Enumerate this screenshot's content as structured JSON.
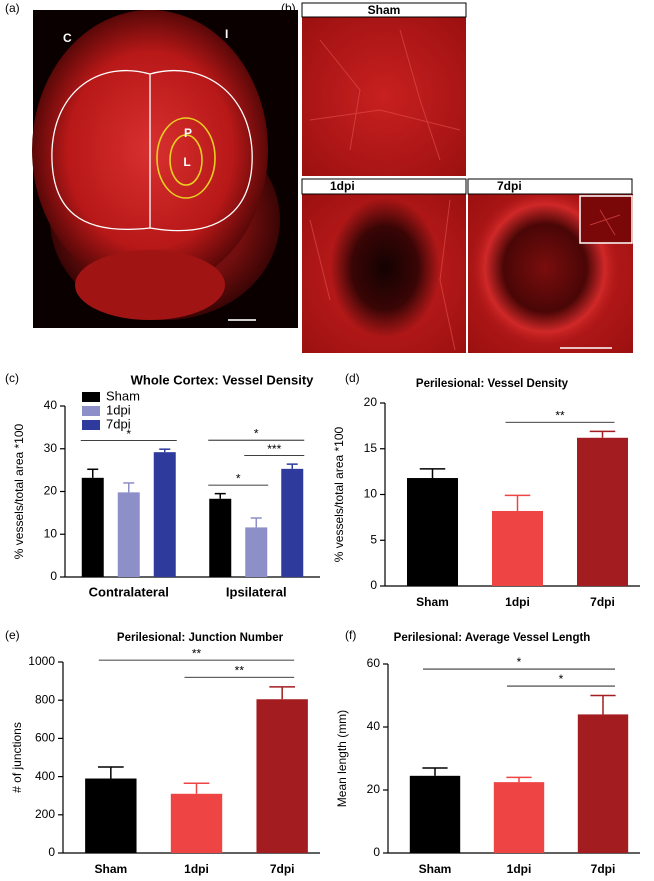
{
  "panel_labels": [
    "(a)",
    "(b)",
    "(c)",
    "(d)",
    "(e)",
    "(f)"
  ],
  "brain_image": {
    "labels": [
      "C",
      "I",
      "P",
      "L"
    ]
  },
  "vessel_images": [
    "Sham",
    "1dpi",
    "7dpi"
  ],
  "chart_data": [
    {
      "type": "grouped_bar",
      "title": "Whole Cortex:  Vessel Density",
      "ylabel": "% vessels/total area *100",
      "categories": [
        "Contralateral",
        "Ipsilateral"
      ],
      "series": [
        {
          "name": "Sham",
          "color": "#000000",
          "values": [
            23.2,
            18.3
          ],
          "errors": [
            2.0,
            1.2
          ]
        },
        {
          "name": "1dpi",
          "color": "#8c8fc8",
          "values": [
            19.8,
            11.6
          ],
          "errors": [
            2.2,
            2.2
          ]
        },
        {
          "name": "7dpi",
          "color": "#2e3a9c",
          "values": [
            29.2,
            25.3
          ],
          "errors": [
            0.7,
            1.1
          ]
        }
      ],
      "ylim": [
        0,
        40
      ],
      "yticks": [
        0,
        10,
        20,
        30,
        40
      ],
      "significance": [
        {
          "category": "Contralateral",
          "between": [
            "Sham",
            "7dpi"
          ],
          "label": "*"
        },
        {
          "category": "Ipsilateral",
          "between": [
            "Sham",
            "1dpi"
          ],
          "label": "*"
        },
        {
          "category": "Ipsilateral",
          "between": [
            "1dpi",
            "7dpi"
          ],
          "label": "***"
        },
        {
          "category": "Ipsilateral",
          "between": [
            "Sham",
            "7dpi"
          ],
          "label": "*"
        }
      ]
    },
    {
      "type": "bar",
      "title": "Perilesional: Vessel Density",
      "ylabel": "% vessels/total area *100",
      "categories": [
        "Sham",
        "1dpi",
        "7dpi"
      ],
      "values": [
        11.8,
        8.2,
        16.2
      ],
      "errors": [
        1.0,
        1.7,
        0.7
      ],
      "colors": [
        "#000000",
        "#ee4444",
        "#a31c20"
      ],
      "ylim": [
        0,
        20
      ],
      "yticks": [
        0,
        5,
        10,
        15,
        20
      ],
      "significance": [
        {
          "between": [
            "1dpi",
            "7dpi"
          ],
          "label": "**"
        }
      ]
    },
    {
      "type": "bar",
      "title": "Perilesional: Junction Number",
      "ylabel": "# of junctions",
      "categories": [
        "Sham",
        "1dpi",
        "7dpi"
      ],
      "values": [
        390,
        310,
        805
      ],
      "errors": [
        60,
        55,
        65
      ],
      "colors": [
        "#000000",
        "#ee4444",
        "#a31c20"
      ],
      "ylim": [
        0,
        1000
      ],
      "yticks": [
        0,
        200,
        400,
        600,
        800,
        1000
      ],
      "significance": [
        {
          "between": [
            "1dpi",
            "7dpi"
          ],
          "label": "**"
        },
        {
          "between": [
            "Sham",
            "7dpi"
          ],
          "label": "**"
        }
      ]
    },
    {
      "type": "bar",
      "title": "Perilesional: Average Vessel Length",
      "ylabel": "Mean length (mm)",
      "categories": [
        "Sham",
        "1dpi",
        "7dpi"
      ],
      "values": [
        24.5,
        22.5,
        44
      ],
      "errors": [
        2.5,
        1.5,
        6
      ],
      "colors": [
        "#000000",
        "#ee4444",
        "#a31c20"
      ],
      "ylim": [
        0,
        60
      ],
      "yticks": [
        0,
        20,
        40,
        60
      ],
      "significance": [
        {
          "between": [
            "1dpi",
            "7dpi"
          ],
          "label": "*"
        },
        {
          "between": [
            "Sham",
            "7dpi"
          ],
          "label": "*"
        }
      ]
    }
  ]
}
